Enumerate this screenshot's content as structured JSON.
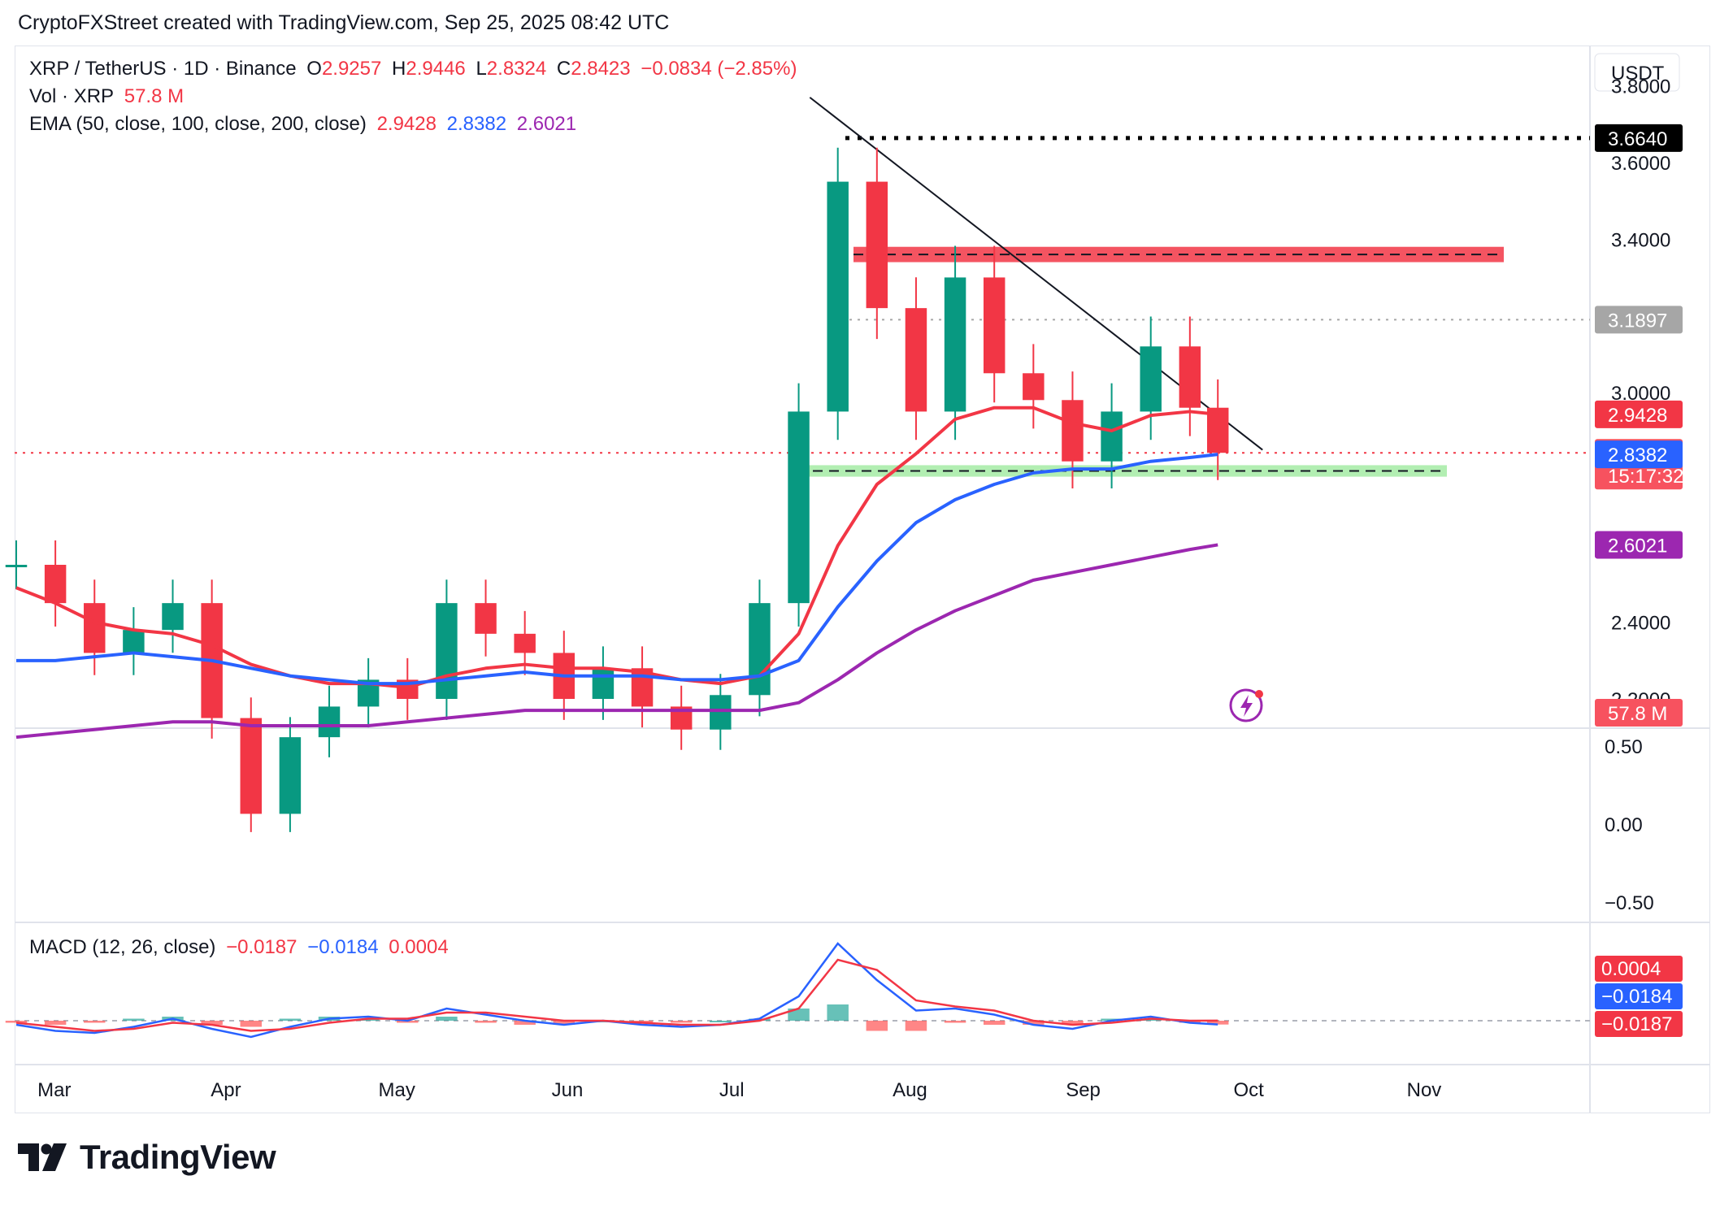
{
  "header": {
    "attribution": "CryptoFXStreet created with TradingView.com, Sep 25, 2025 08:42 UTC"
  },
  "legend": {
    "symbol": "XRP / TetherUS · 1D · Binance",
    "open_label": "O",
    "open": "2.9257",
    "high_label": "H",
    "high": "2.9446",
    "low_label": "L",
    "low": "2.8324",
    "close_label": "C",
    "close": "2.8423",
    "change": "−0.0834 (−2.85%)",
    "vol_label": "Vol · XRP",
    "vol_value": "57.8 M",
    "ema_label": "EMA (50, close, 100, close, 200, close)",
    "ema50": "2.9428",
    "ema100": "2.8382",
    "ema200": "2.6021",
    "macd_label": "MACD (12, 26, close)",
    "macd_hist": "−0.0187",
    "macd_line": "−0.0184",
    "macd_signal": "0.0004"
  },
  "price_axis": {
    "currency": "USDT",
    "ticks": [
      "3.8000",
      "3.6000",
      "3.4000",
      "3.0000",
      "2.4000",
      "2.2000"
    ],
    "tick_values": [
      3.8,
      3.6,
      3.4,
      3.0,
      2.4,
      2.2
    ],
    "labels": [
      {
        "text": "3.6640",
        "value": 3.664,
        "color": "#000000"
      },
      {
        "text": "3.1897",
        "value": 3.1897,
        "color": "#a6a6a6"
      },
      {
        "text": "2.9428",
        "value": 2.9428,
        "color": "#f23645"
      },
      {
        "text": "2.8423",
        "value": 2.8423,
        "color": "#f7525f",
        "sub": "15:17:32"
      },
      {
        "text": "2.8382",
        "value": 2.8382,
        "color": "#2962ff"
      },
      {
        "text": "2.6021",
        "value": 2.6021,
        "color": "#9c27b0"
      },
      {
        "text": "57.8 M",
        "color": "#f7525f"
      }
    ]
  },
  "osc_axis": {
    "ticks": [
      "0.50",
      "0.00",
      "−0.50"
    ],
    "tick_values": [
      0.5,
      0.0,
      -0.5
    ]
  },
  "macd_axis": {
    "labels": [
      {
        "text": "0.0004",
        "value": 0.0004,
        "color": "#f23645"
      },
      {
        "text": "−0.0184",
        "value": -0.0184,
        "color": "#2962ff"
      },
      {
        "text": "−0.0187",
        "value": -0.0187,
        "color": "#f23645"
      }
    ]
  },
  "time_axis": {
    "labels": [
      "Mar",
      "Apr",
      "May",
      "Jun",
      "Jul",
      "Aug",
      "Sep",
      "Oct",
      "Nov"
    ]
  },
  "footer": {
    "brand": "TradingView"
  },
  "chart_data": {
    "type": "candlestick",
    "symbol": "XRP / TetherUS",
    "exchange": "Binance",
    "interval": "1D",
    "price_range": [
      2.13,
      3.95
    ],
    "levels": [
      {
        "type": "dotted",
        "value": 3.664,
        "color": "#000000"
      },
      {
        "type": "dotted",
        "value": 3.1897,
        "color": "#a6a6a6"
      },
      {
        "type": "zone",
        "from": 3.34,
        "to": 3.38,
        "color": "#f23645"
      },
      {
        "type": "zone",
        "from": 2.78,
        "to": 2.81,
        "color": "#7ee37e"
      },
      {
        "type": "dotted",
        "value": 2.8423,
        "color": "#f23645"
      }
    ],
    "trendline": {
      "start": [
        "2025-07-14",
        3.77
      ],
      "end": [
        "2025-10-03",
        2.85
      ]
    },
    "price_series": {
      "dates": [
        "2025-02-22",
        "2025-03-01",
        "2025-03-08",
        "2025-03-15",
        "2025-03-22",
        "2025-03-29",
        "2025-04-05",
        "2025-04-12",
        "2025-04-19",
        "2025-04-26",
        "2025-05-03",
        "2025-05-10",
        "2025-05-17",
        "2025-05-24",
        "2025-05-31",
        "2025-06-07",
        "2025-06-14",
        "2025-06-21",
        "2025-06-28",
        "2025-07-05",
        "2025-07-12",
        "2025-07-19",
        "2025-07-26",
        "2025-08-02",
        "2025-08-09",
        "2025-08-16",
        "2025-08-23",
        "2025-08-30",
        "2025-09-06",
        "2025-09-13",
        "2025-09-20",
        "2025-09-25"
      ],
      "close": [
        2.55,
        2.45,
        2.32,
        2.38,
        2.45,
        2.15,
        1.9,
        2.1,
        2.18,
        2.25,
        2.2,
        2.45,
        2.37,
        2.32,
        2.2,
        2.28,
        2.18,
        2.12,
        2.21,
        2.45,
        2.95,
        3.55,
        3.22,
        2.95,
        3.3,
        3.05,
        2.98,
        2.82,
        2.95,
        3.12,
        2.96,
        2.8423
      ]
    },
    "series": [
      {
        "name": "EMA 50",
        "color": "#f23645",
        "values": [
          2.49,
          2.45,
          2.4,
          2.38,
          2.37,
          2.34,
          2.29,
          2.26,
          2.24,
          2.24,
          2.23,
          2.26,
          2.28,
          2.29,
          2.28,
          2.28,
          2.27,
          2.25,
          2.24,
          2.26,
          2.37,
          2.6,
          2.76,
          2.84,
          2.93,
          2.96,
          2.96,
          2.92,
          2.9,
          2.94,
          2.95,
          2.9428
        ]
      },
      {
        "name": "EMA 100",
        "color": "#2962ff",
        "values": [
          2.3,
          2.3,
          2.31,
          2.32,
          2.31,
          2.3,
          2.28,
          2.26,
          2.25,
          2.24,
          2.24,
          2.25,
          2.26,
          2.27,
          2.26,
          2.26,
          2.26,
          2.25,
          2.25,
          2.26,
          2.3,
          2.44,
          2.56,
          2.66,
          2.72,
          2.76,
          2.79,
          2.8,
          2.8,
          2.82,
          2.83,
          2.8382
        ]
      },
      {
        "name": "EMA 200",
        "color": "#9c27b0",
        "values": [
          2.1,
          2.11,
          2.12,
          2.13,
          2.14,
          2.14,
          2.13,
          2.13,
          2.13,
          2.13,
          2.14,
          2.15,
          2.16,
          2.17,
          2.17,
          2.17,
          2.17,
          2.17,
          2.17,
          2.17,
          2.19,
          2.25,
          2.32,
          2.38,
          2.43,
          2.47,
          2.51,
          2.53,
          2.55,
          2.57,
          2.59,
          2.6021
        ]
      }
    ],
    "volume_series": {
      "name": "Volume",
      "last": "57.8 M"
    },
    "macd": {
      "fast": 12,
      "slow": 26,
      "source": "close",
      "macd_line": [
        -0.02,
        -0.05,
        -0.06,
        -0.03,
        0.01,
        -0.04,
        -0.08,
        -0.03,
        0.01,
        0.02,
        0.0,
        0.06,
        0.03,
        0.0,
        -0.02,
        0.0,
        -0.02,
        -0.03,
        -0.02,
        0.01,
        0.12,
        0.38,
        0.2,
        0.05,
        0.06,
        0.03,
        -0.02,
        -0.04,
        0.0,
        0.02,
        -0.01,
        -0.0184
      ],
      "signal_line": [
        -0.01,
        -0.03,
        -0.05,
        -0.04,
        -0.01,
        -0.02,
        -0.05,
        -0.04,
        -0.01,
        0.01,
        0.01,
        0.04,
        0.04,
        0.02,
        0.0,
        0.0,
        -0.01,
        -0.02,
        -0.02,
        0.0,
        0.06,
        0.3,
        0.25,
        0.1,
        0.07,
        0.05,
        0.0,
        -0.02,
        -0.01,
        0.01,
        0.0,
        0.0004
      ],
      "histogram": [
        -0.01,
        -0.02,
        -0.01,
        0.01,
        0.02,
        -0.02,
        -0.03,
        0.01,
        0.02,
        0.01,
        -0.01,
        0.02,
        -0.01,
        -0.02,
        -0.02,
        0.0,
        -0.01,
        -0.01,
        0.0,
        0.01,
        0.06,
        0.08,
        -0.05,
        -0.05,
        -0.01,
        -0.02,
        -0.02,
        -0.02,
        0.01,
        0.01,
        -0.01,
        -0.0187
      ]
    },
    "x_range": [
      "2025-02-22",
      "2025-11-30"
    ]
  }
}
